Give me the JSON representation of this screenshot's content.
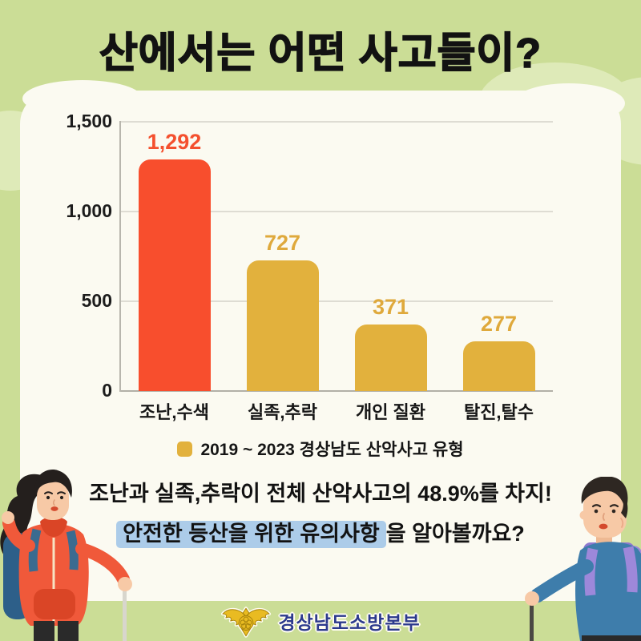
{
  "page": {
    "title": "산에서는 어떤 사고들이?"
  },
  "chart_data": {
    "type": "bar",
    "title": "2019 ~ 2023 경상남도 산악사고 유형",
    "categories": [
      "조난,수색",
      "실족,추락",
      "개인 질환",
      "탈진,탈수"
    ],
    "values": [
      1292,
      727,
      371,
      277
    ],
    "value_labels": [
      "1,292",
      "727",
      "371",
      "277"
    ],
    "bar_colors": [
      "#f84e2d",
      "#e2b13d",
      "#e2b13d",
      "#e2b13d"
    ],
    "value_label_colors": [
      "#f4502e",
      "#dfa93c",
      "#dfa93c",
      "#dfa93c"
    ],
    "y_ticks": [
      {
        "label": "1,500",
        "value": 1500
      },
      {
        "label": "1,000",
        "value": 1000
      },
      {
        "label": "500",
        "value": 500
      },
      {
        "label": "0",
        "value": 0
      }
    ],
    "ylim": [
      0,
      1500
    ],
    "grid": true,
    "legend": {
      "text": "2019 ~ 2023 경상남도 산악사고 유형",
      "swatch_color": "#e2b13d",
      "position": "bottom"
    }
  },
  "callout": {
    "line1": "조난과 실족,추락이 전체 산악사고의 48.9%를 차지!",
    "line2_highlighted": "안전한 등산을 위한 유의사항",
    "line2_rest": "을 알아볼까요?"
  },
  "footer": {
    "org_name": "경상남도소방본부"
  },
  "icons": {
    "emblem": "fire-service-eagle-emblem",
    "left_illustration": "hiker-woman-illustration",
    "right_illustration": "hiker-man-illustration",
    "legend_swatch": "gold-square-swatch"
  },
  "colors": {
    "background": "#cbdd96",
    "background_cloud": "#deeab8",
    "card": "#fbfaf1",
    "accent_red": "#f84e2d",
    "accent_gold": "#e2b13d",
    "highlight_blue": "#accce9",
    "org_navy": "#2c3a8d"
  }
}
